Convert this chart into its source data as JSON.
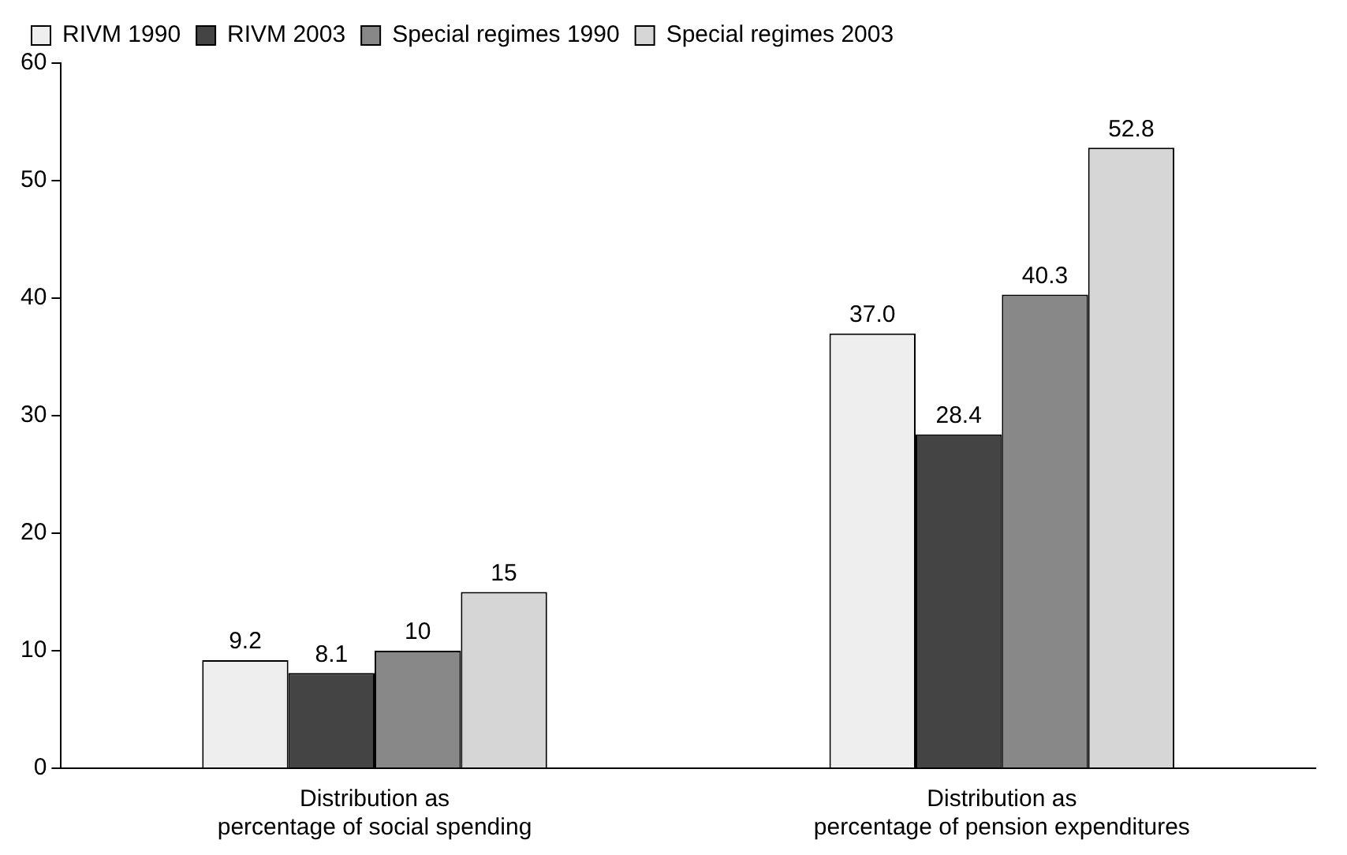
{
  "chart_data": {
    "type": "bar",
    "categories": [
      "Distribution as\npercentage of social spending",
      "Distribution as\npercentage of pension expenditures"
    ],
    "series": [
      {
        "name": "RIVM 1990",
        "color": "#eeeeee",
        "values": [
          9.2,
          37.0
        ],
        "value_labels": [
          "9.2",
          "37.0"
        ]
      },
      {
        "name": "RIVM 2003",
        "color": "#444444",
        "values": [
          8.1,
          28.4
        ],
        "value_labels": [
          "8.1",
          "28.4"
        ]
      },
      {
        "name": "Special regimes 1990",
        "color": "#888888",
        "values": [
          10,
          40.3
        ],
        "value_labels": [
          "10",
          "40.3"
        ]
      },
      {
        "name": "Special regimes 2003",
        "color": "#d6d6d6",
        "values": [
          15,
          52.8
        ],
        "value_labels": [
          "15",
          "52.8"
        ]
      }
    ],
    "ylim": [
      0,
      60
    ],
    "yticks": [
      0,
      10,
      20,
      30,
      40,
      50,
      60
    ],
    "grid": false,
    "legend": "top left"
  }
}
